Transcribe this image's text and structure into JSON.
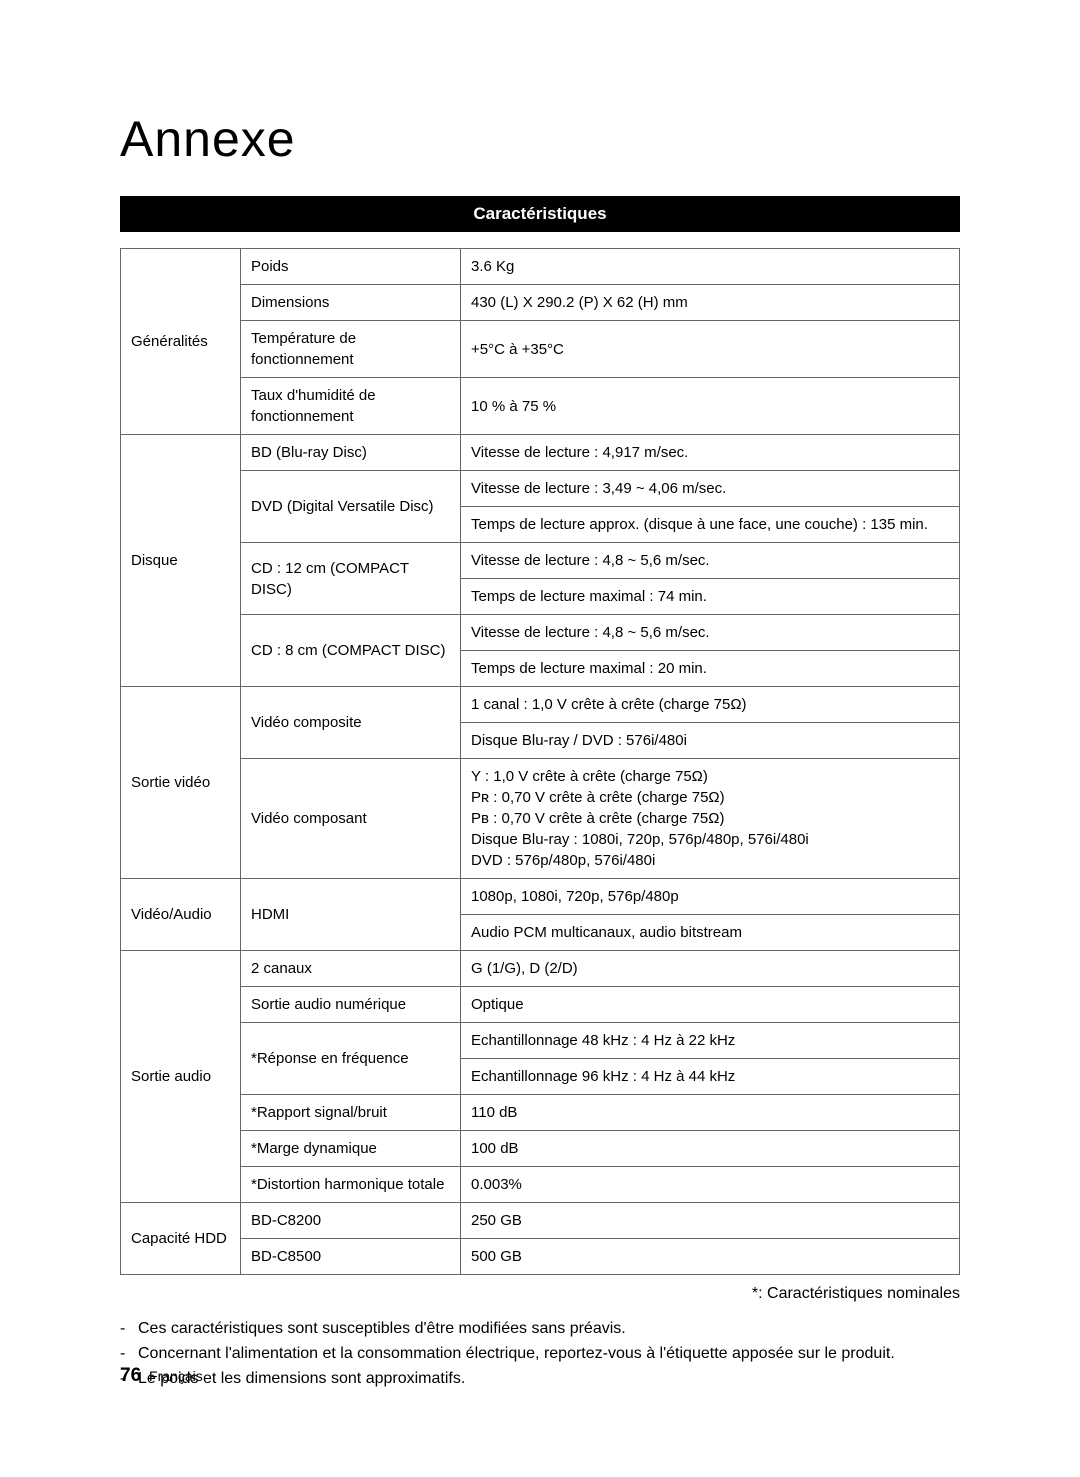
{
  "title": "Annexe",
  "header": "Caractéristiques",
  "colors": {
    "header_bg": "#000000",
    "header_fg": "#ffffff",
    "border": "#666666",
    "text": "#000000",
    "page_bg": "#ffffff"
  },
  "sections": {
    "generalites": {
      "label": "Généralités",
      "rows": [
        {
          "label": "Poids",
          "value": "3.6 Kg"
        },
        {
          "label": "Dimensions",
          "value": "430 (L) X 290.2 (P) X 62 (H) mm"
        },
        {
          "label": "Température de fonctionnement",
          "value": "+5°C à +35°C"
        },
        {
          "label": "Taux d'humidité de fonctionnement",
          "value": "10 % à 75 %"
        }
      ]
    },
    "disque": {
      "label": "Disque",
      "bd": {
        "label": "BD (Blu-ray Disc)",
        "v1": "Vitesse de lecture : 4,917 m/sec."
      },
      "dvd": {
        "label": "DVD (Digital Versatile Disc)",
        "v1": "Vitesse de lecture : 3,49 ~ 4,06 m/sec.",
        "v2": "Temps de lecture approx. (disque à une face, une couche) : 135 min."
      },
      "cd12": {
        "label": "CD : 12 cm (COMPACT DISC)",
        "v1": "Vitesse de lecture : 4,8 ~ 5,6 m/sec.",
        "v2": "Temps de lecture maximal : 74 min."
      },
      "cd8": {
        "label": "CD : 8 cm (COMPACT DISC)",
        "v1": "Vitesse de lecture : 4,8 ~ 5,6 m/sec.",
        "v2": "Temps de lecture maximal : 20 min."
      }
    },
    "sortie_video": {
      "label": "Sortie vidéo",
      "composite": {
        "label": "Vidéo composite",
        "v1": "1 canal : 1,0 V crête à crête (charge 75Ω)",
        "v2": "Disque Blu-ray / DVD : 576i/480i"
      },
      "composant": {
        "label": "Vidéo composant",
        "lines": [
          "Y  : 1,0 V crête à crête (charge 75Ω)",
          "Pʀ : 0,70 V crête à crête (charge 75Ω)",
          "Pʙ : 0,70 V crête à crête (charge 75Ω)",
          "Disque Blu-ray : 1080i, 720p, 576p/480p, 576i/480i",
          "DVD : 576p/480p, 576i/480i"
        ]
      }
    },
    "video_audio": {
      "label": "Vidéo/Audio",
      "hdmi": {
        "label": "HDMI",
        "v1": "1080p, 1080i, 720p, 576p/480p",
        "v2": "Audio PCM multicanaux, audio bitstream"
      }
    },
    "sortie_audio": {
      "label": "Sortie audio",
      "rows": [
        {
          "label": "2 canaux",
          "value": "G (1/G), D (2/D)"
        },
        {
          "label": "Sortie audio numérique",
          "value": "Optique"
        }
      ],
      "freq": {
        "label": "*Réponse en fréquence",
        "v1": "Echantillonnage 48 kHz : 4 Hz à 22 kHz",
        "v2": "Echantillonnage 96 kHz : 4 Hz à 44 kHz"
      },
      "rows2": [
        {
          "label": "*Rapport signal/bruit",
          "value": "110 dB"
        },
        {
          "label": "*Marge dynamique",
          "value": "100 dB"
        },
        {
          "label": "*Distortion harmonique totale",
          "value": "0.003%"
        }
      ]
    },
    "hdd": {
      "label": "Capacité HDD",
      "rows": [
        {
          "label": "BD-C8200",
          "value": "250 GB"
        },
        {
          "label": "BD-C8500",
          "value": "500 GB"
        }
      ]
    }
  },
  "footnote": "*: Caractéristiques nominales",
  "notes": [
    "Ces caractéristiques sont susceptibles d'être modifiées sans préavis.",
    "Concernant l'alimentation et la consommation électrique, reportez-vous à l'étiquette apposée sur le produit.",
    "Le poids et les dimensions sont approximatifs."
  ],
  "footer": {
    "page": "76",
    "lang": "Français"
  }
}
